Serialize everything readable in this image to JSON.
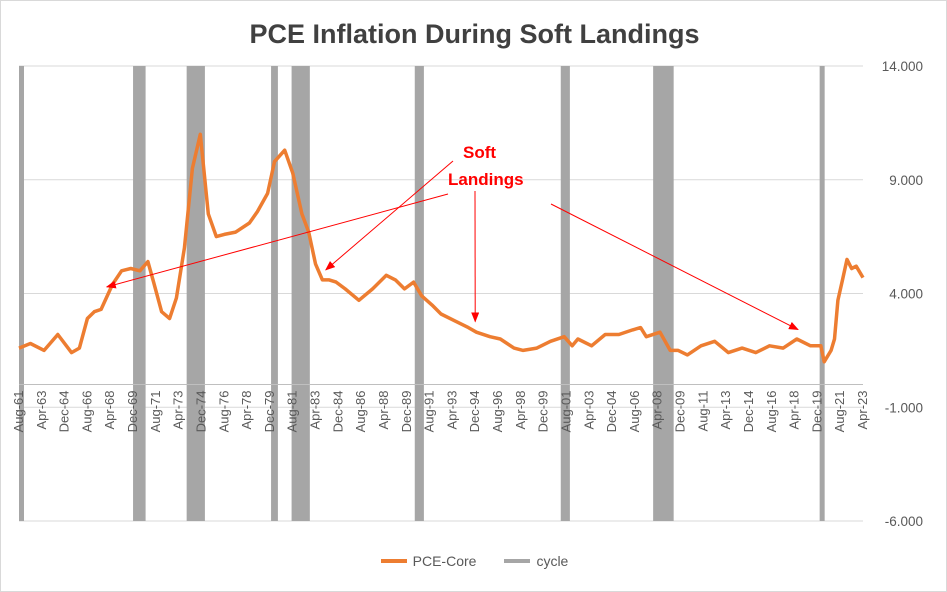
{
  "chart_data": {
    "type": "line",
    "title": "PCE Inflation During Soft Landings",
    "ylim": [
      -6,
      14
    ],
    "yticks": [
      -6,
      -1,
      4,
      9,
      14
    ],
    "ytick_labels": [
      "-6.000",
      "-1.000",
      "4.000",
      "9.000",
      "14.000"
    ],
    "x_start": "Aug-61",
    "x_end": "Apr-23",
    "xtick_labels": [
      "Aug-61",
      "Apr-63",
      "Dec-64",
      "Aug-66",
      "Apr-68",
      "Dec-69",
      "Aug-71",
      "Apr-73",
      "Dec-74",
      "Aug-76",
      "Apr-78",
      "Dec-79",
      "Aug-81",
      "Apr-83",
      "Dec-84",
      "Aug-86",
      "Apr-88",
      "Dec-89",
      "Aug-91",
      "Apr-93",
      "Dec-94",
      "Aug-96",
      "Apr-98",
      "Dec-99",
      "Aug-01",
      "Apr-03",
      "Dec-04",
      "Aug-06",
      "Apr-08",
      "Dec-09",
      "Aug-11",
      "Apr-13",
      "Dec-14",
      "Aug-16",
      "Apr-18",
      "Dec-19",
      "Aug-21",
      "Apr-23"
    ],
    "series": [
      {
        "name": "PCE-Core",
        "color": "#ed7d31",
        "points": [
          [
            "1961-08",
            1.6
          ],
          [
            "1962-06",
            1.8
          ],
          [
            "1963-06",
            1.5
          ],
          [
            "1964-06",
            2.2
          ],
          [
            "1965-06",
            1.4
          ],
          [
            "1966-01",
            1.6
          ],
          [
            "1966-08",
            2.9
          ],
          [
            "1967-02",
            3.2
          ],
          [
            "1967-08",
            3.3
          ],
          [
            "1968-06",
            4.4
          ],
          [
            "1969-02",
            5.0
          ],
          [
            "1969-10",
            5.1
          ],
          [
            "1970-06",
            5.0
          ],
          [
            "1971-01",
            5.4
          ],
          [
            "1971-06",
            4.5
          ],
          [
            "1972-01",
            3.2
          ],
          [
            "1972-08",
            2.9
          ],
          [
            "1973-02",
            3.8
          ],
          [
            "1973-09",
            6.0
          ],
          [
            "1974-04",
            9.5
          ],
          [
            "1974-11",
            11.0
          ],
          [
            "1975-06",
            7.5
          ],
          [
            "1976-01",
            6.5
          ],
          [
            "1976-08",
            6.6
          ],
          [
            "1977-06",
            6.7
          ],
          [
            "1978-06",
            7.1
          ],
          [
            "1979-01",
            7.6
          ],
          [
            "1979-10",
            8.4
          ],
          [
            "1980-04",
            9.8
          ],
          [
            "1981-01",
            10.3
          ],
          [
            "1981-08",
            9.3
          ],
          [
            "1982-04",
            7.5
          ],
          [
            "1982-10",
            6.7
          ],
          [
            "1983-04",
            5.3
          ],
          [
            "1983-10",
            4.6
          ],
          [
            "1984-04",
            4.6
          ],
          [
            "1984-10",
            4.5
          ],
          [
            "1985-06",
            4.2
          ],
          [
            "1986-06",
            3.7
          ],
          [
            "1987-06",
            4.2
          ],
          [
            "1988-06",
            4.8
          ],
          [
            "1989-02",
            4.6
          ],
          [
            "1989-10",
            4.2
          ],
          [
            "1990-06",
            4.5
          ],
          [
            "1991-01",
            3.9
          ],
          [
            "1991-10",
            3.5
          ],
          [
            "1992-06",
            3.1
          ],
          [
            "1993-06",
            2.8
          ],
          [
            "1994-06",
            2.5
          ],
          [
            "1995-01",
            2.3
          ],
          [
            "1996-01",
            2.1
          ],
          [
            "1996-10",
            2.0
          ],
          [
            "1997-10",
            1.6
          ],
          [
            "1998-06",
            1.5
          ],
          [
            "1999-06",
            1.6
          ],
          [
            "2000-06",
            1.9
          ],
          [
            "2001-06",
            2.1
          ],
          [
            "2002-01",
            1.7
          ],
          [
            "2002-06",
            2.0
          ],
          [
            "2003-06",
            1.7
          ],
          [
            "2004-06",
            2.2
          ],
          [
            "2005-06",
            2.2
          ],
          [
            "2006-06",
            2.4
          ],
          [
            "2007-01",
            2.5
          ],
          [
            "2007-06",
            2.1
          ],
          [
            "2008-06",
            2.3
          ],
          [
            "2009-03",
            1.5
          ],
          [
            "2009-10",
            1.5
          ],
          [
            "2010-06",
            1.3
          ],
          [
            "2011-06",
            1.7
          ],
          [
            "2012-06",
            1.9
          ],
          [
            "2013-06",
            1.4
          ],
          [
            "2014-06",
            1.6
          ],
          [
            "2015-06",
            1.4
          ],
          [
            "2016-06",
            1.7
          ],
          [
            "2017-06",
            1.6
          ],
          [
            "2018-06",
            2.0
          ],
          [
            "2019-06",
            1.7
          ],
          [
            "2020-03",
            1.7
          ],
          [
            "2020-06",
            1.0
          ],
          [
            "2020-12",
            1.5
          ],
          [
            "2021-03",
            2.0
          ],
          [
            "2021-06",
            3.7
          ],
          [
            "2021-10",
            4.6
          ],
          [
            "2022-02",
            5.5
          ],
          [
            "2022-06",
            5.1
          ],
          [
            "2022-10",
            5.2
          ],
          [
            "2023-04",
            4.7
          ]
        ]
      },
      {
        "name": "cycle",
        "color": "#a6a6a6",
        "recession_bands": [
          [
            "1961-08",
            "1961-10"
          ],
          [
            "1969-12",
            "1970-11"
          ],
          [
            "1973-11",
            "1975-03"
          ],
          [
            "1980-01",
            "1980-07"
          ],
          [
            "1981-07",
            "1982-11"
          ],
          [
            "1990-07",
            "1991-03"
          ],
          [
            "2001-03",
            "2001-11"
          ],
          [
            "2007-12",
            "2009-06"
          ],
          [
            "2020-02",
            "2020-04"
          ]
        ]
      }
    ],
    "annotation": {
      "lines": [
        "Soft",
        "Landings"
      ],
      "color": "#ff0000",
      "targets": [
        "1968-01",
        "1984-01",
        "1994-12",
        "2018-07"
      ]
    },
    "legend": "bottom",
    "grid": "horizontal"
  }
}
